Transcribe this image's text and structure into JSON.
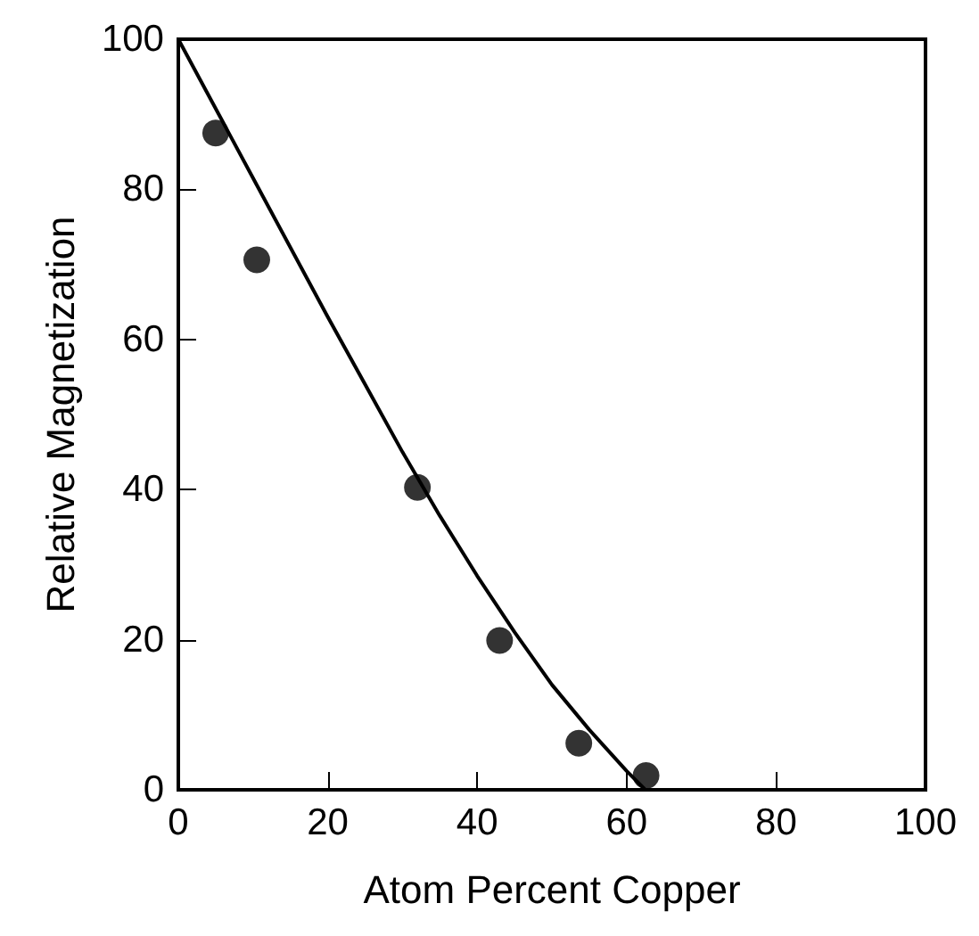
{
  "chart_data": {
    "type": "scatter",
    "xlabel": "Atom Percent Copper",
    "ylabel": "Relative Magnetization",
    "xlim": [
      0,
      100
    ],
    "ylim": [
      0,
      100
    ],
    "xticks": [
      0,
      20,
      40,
      60,
      80,
      100
    ],
    "yticks": [
      0,
      20,
      40,
      60,
      80,
      100
    ],
    "grid": false,
    "series": [
      {
        "color": "#000000",
        "marker": "circle",
        "x": [
          5,
          10.5,
          32,
          43,
          53.6,
          62.6
        ],
        "values": [
          87.5,
          70.6,
          40.3,
          19.9,
          6.2,
          1.9
        ]
      },
      {
        "type": "line",
        "color": "#000000",
        "marker": "none",
        "line_style": "solid",
        "x": [
          0,
          10,
          20,
          25,
          30,
          35,
          40,
          45,
          50,
          55,
          60,
          62.5
        ],
        "values": [
          100,
          81.5,
          63,
          54,
          45,
          36.5,
          28.5,
          21,
          14,
          8,
          2.5,
          0
        ]
      }
    ]
  }
}
